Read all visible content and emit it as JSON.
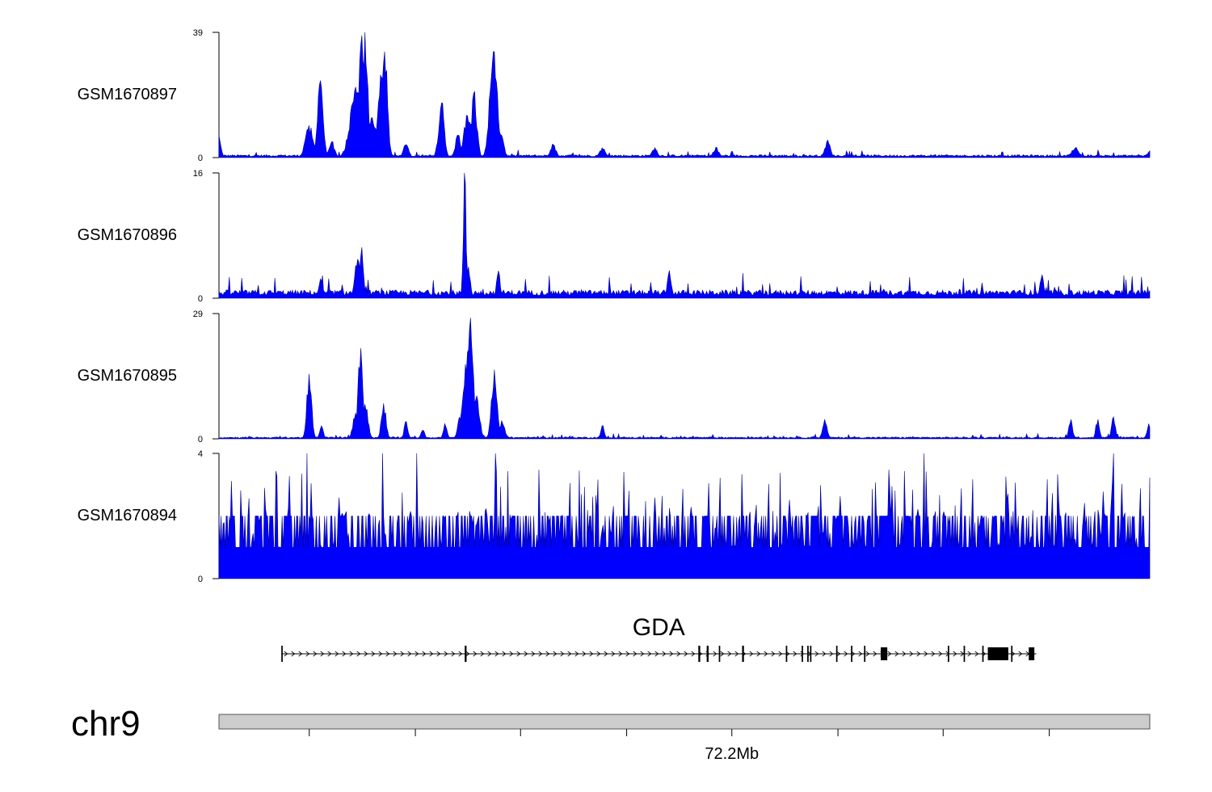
{
  "chart_data": {
    "type": "area",
    "tracks": [
      {
        "name": "GSM1670897",
        "ymax": 39,
        "ymin": 0,
        "color": "#0000ff",
        "baseline": 0.6,
        "noise": 1.6,
        "peaks": [
          {
            "pos": 0.0,
            "h": 7,
            "w": 0.002
          },
          {
            "pos": 0.097,
            "h": 10,
            "w": 0.004
          },
          {
            "pos": 0.109,
            "h": 24,
            "w": 0.003
          },
          {
            "pos": 0.121,
            "h": 5,
            "w": 0.003
          },
          {
            "pos": 0.147,
            "h": 22,
            "w": 0.006
          },
          {
            "pos": 0.153,
            "h": 38,
            "w": 0.003
          },
          {
            "pos": 0.157,
            "h": 39,
            "w": 0.003
          },
          {
            "pos": 0.165,
            "h": 12,
            "w": 0.004
          },
          {
            "pos": 0.175,
            "h": 25,
            "w": 0.004
          },
          {
            "pos": 0.178,
            "h": 33,
            "w": 0.003
          },
          {
            "pos": 0.201,
            "h": 4,
            "w": 0.003
          },
          {
            "pos": 0.239,
            "h": 17,
            "w": 0.003
          },
          {
            "pos": 0.257,
            "h": 7,
            "w": 0.003
          },
          {
            "pos": 0.267,
            "h": 13,
            "w": 0.004
          },
          {
            "pos": 0.274,
            "h": 20,
            "w": 0.003
          },
          {
            "pos": 0.295,
            "h": 33,
            "w": 0.004
          },
          {
            "pos": 0.303,
            "h": 7,
            "w": 0.003
          },
          {
            "pos": 0.359,
            "h": 4,
            "w": 0.003
          },
          {
            "pos": 0.412,
            "h": 3,
            "w": 0.003
          },
          {
            "pos": 0.468,
            "h": 3,
            "w": 0.003
          },
          {
            "pos": 0.534,
            "h": 3,
            "w": 0.003
          },
          {
            "pos": 0.654,
            "h": 5,
            "w": 0.003
          },
          {
            "pos": 0.92,
            "h": 3,
            "w": 0.004
          },
          {
            "pos": 1.0,
            "h": 2,
            "w": 0.003
          }
        ]
      },
      {
        "name": "GSM1670896",
        "ymax": 16,
        "ymin": 0,
        "color": "#0000ff",
        "baseline": 0.7,
        "noise": 2.2,
        "peaks": [
          {
            "pos": 0.109,
            "h": 2.5,
            "w": 0.002
          },
          {
            "pos": 0.149,
            "h": 5,
            "w": 0.003
          },
          {
            "pos": 0.153,
            "h": 6.5,
            "w": 0.002
          },
          {
            "pos": 0.264,
            "h": 16,
            "w": 0.0015
          },
          {
            "pos": 0.268,
            "h": 4,
            "w": 0.002
          },
          {
            "pos": 0.3,
            "h": 3.5,
            "w": 0.002
          },
          {
            "pos": 0.484,
            "h": 3.5,
            "w": 0.002
          },
          {
            "pos": 0.884,
            "h": 3,
            "w": 0.002
          }
        ]
      },
      {
        "name": "GSM1670895",
        "ymax": 29,
        "ymin": 0,
        "color": "#0000ff",
        "baseline": 0.3,
        "noise": 0.8,
        "peaks": [
          {
            "pos": 0.097,
            "h": 15,
            "w": 0.0025
          },
          {
            "pos": 0.11,
            "h": 3,
            "w": 0.002
          },
          {
            "pos": 0.147,
            "h": 6,
            "w": 0.003
          },
          {
            "pos": 0.152,
            "h": 21,
            "w": 0.0025
          },
          {
            "pos": 0.157,
            "h": 8,
            "w": 0.003
          },
          {
            "pos": 0.177,
            "h": 8,
            "w": 0.0025
          },
          {
            "pos": 0.201,
            "h": 4,
            "w": 0.002
          },
          {
            "pos": 0.219,
            "h": 2,
            "w": 0.002
          },
          {
            "pos": 0.243,
            "h": 3.5,
            "w": 0.002
          },
          {
            "pos": 0.26,
            "h": 6,
            "w": 0.003
          },
          {
            "pos": 0.267,
            "h": 20,
            "w": 0.004
          },
          {
            "pos": 0.27,
            "h": 28,
            "w": 0.003
          },
          {
            "pos": 0.277,
            "h": 10,
            "w": 0.003
          },
          {
            "pos": 0.296,
            "h": 16,
            "w": 0.003
          },
          {
            "pos": 0.304,
            "h": 4,
            "w": 0.003
          },
          {
            "pos": 0.412,
            "h": 3,
            "w": 0.002
          },
          {
            "pos": 0.651,
            "h": 4.5,
            "w": 0.0025
          },
          {
            "pos": 0.915,
            "h": 4.5,
            "w": 0.002
          },
          {
            "pos": 0.944,
            "h": 4.5,
            "w": 0.002
          },
          {
            "pos": 0.961,
            "h": 5,
            "w": 0.002
          },
          {
            "pos": 0.999,
            "h": 3.5,
            "w": 0.002
          }
        ]
      },
      {
        "name": "GSM1670894",
        "ymax": 4,
        "ymin": 0,
        "color": "#0000ff",
        "style": "spiky",
        "tallPositions": [
          0.095,
          0.176,
          0.212,
          0.297,
          0.758,
          0.961
        ]
      }
    ],
    "gene": {
      "name": "GDA",
      "strand": "+",
      "start": 0.067,
      "end": 0.878,
      "exons": [
        {
          "s": 0.067,
          "e": 0.0685
        },
        {
          "s": 0.264,
          "e": 0.266
        },
        {
          "s": 0.515,
          "e": 0.517
        },
        {
          "s": 0.524,
          "e": 0.526
        },
        {
          "s": 0.537,
          "e": 0.5385
        },
        {
          "s": 0.562,
          "e": 0.564
        },
        {
          "s": 0.609,
          "e": 0.6105
        },
        {
          "s": 0.626,
          "e": 0.6275
        },
        {
          "s": 0.632,
          "e": 0.6335
        },
        {
          "s": 0.635,
          "e": 0.6365
        },
        {
          "s": 0.663,
          "e": 0.6645
        },
        {
          "s": 0.679,
          "e": 0.6805
        },
        {
          "s": 0.693,
          "e": 0.6945
        },
        {
          "s": 0.711,
          "e": 0.718,
          "thick": true
        },
        {
          "s": 0.783,
          "e": 0.7845
        },
        {
          "s": 0.8,
          "e": 0.8015
        },
        {
          "s": 0.82,
          "e": 0.8215
        },
        {
          "s": 0.826,
          "e": 0.848,
          "thick": true
        },
        {
          "s": 0.851,
          "e": 0.8525
        },
        {
          "s": 0.87,
          "e": 0.876,
          "thick": true
        }
      ]
    },
    "chromosome": {
      "name": "chr9",
      "ticks": [
        0.097,
        0.211,
        0.324,
        0.438,
        0.551,
        0.665,
        0.778,
        0.892
      ],
      "labeled_tick": {
        "pos": 0.551,
        "label": "72.2Mb"
      }
    }
  }
}
